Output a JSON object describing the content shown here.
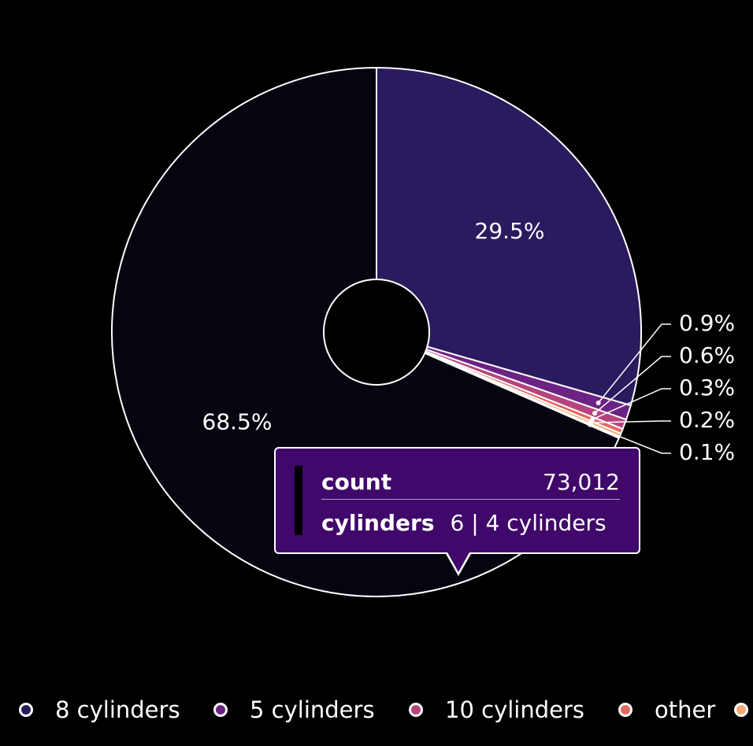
{
  "chart_data": {
    "type": "pie",
    "donut": true,
    "legend_position": "bottom",
    "slices": [
      {
        "label": "8 cylinders",
        "percent": 29.5,
        "percent_label": "29.5%",
        "color": "#2b1a5e"
      },
      {
        "label": "5 cylinders",
        "percent": 0.9,
        "percent_label": "0.9%",
        "color": "#6b2383"
      },
      {
        "label": "10 cylinders",
        "percent": 0.6,
        "percent_label": "0.6%",
        "color": "#b5447c"
      },
      {
        "label": "other",
        "percent": 0.3,
        "percent_label": "0.3%",
        "color": "#e3685e"
      },
      {
        "label": "",
        "percent": 0.2,
        "percent_label": "0.2%",
        "color": "#f5a872"
      },
      {
        "label": "",
        "percent": 0.1,
        "percent_label": "0.1%",
        "color": "#fbe9b4"
      },
      {
        "label": "6 | 4 cylinders",
        "percent": 68.5,
        "percent_label": "68.5%",
        "color": "#05040f"
      }
    ],
    "legend": [
      {
        "label": "8 cylinders",
        "color": "#2b1a5e"
      },
      {
        "label": "5 cylinders",
        "color": "#6b2383"
      },
      {
        "label": "10 cylinders",
        "color": "#b5447c"
      },
      {
        "label": "other",
        "color": "#e3685e"
      },
      {
        "label": "",
        "color": "#f5a872"
      }
    ],
    "tooltip": {
      "key1": "count",
      "value1": "73,012",
      "key2": "cylinders",
      "value2": "6 | 4 cylinders"
    }
  }
}
